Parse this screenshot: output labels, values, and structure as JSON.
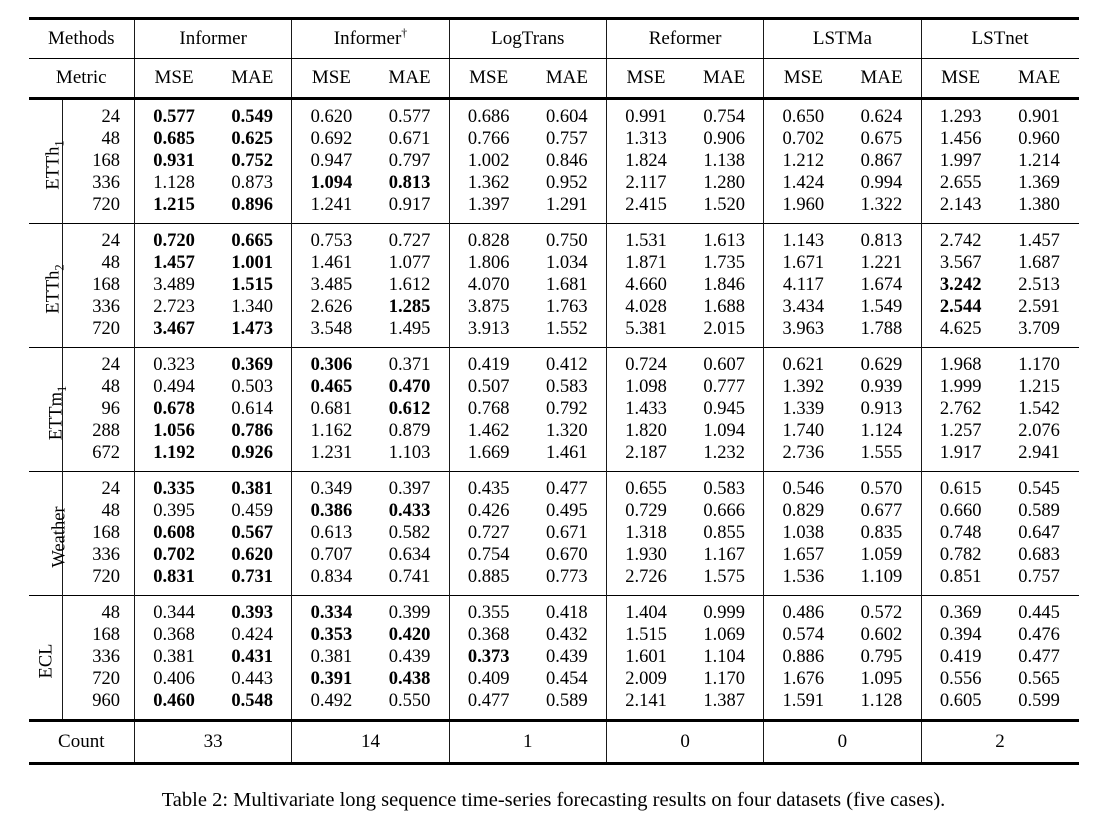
{
  "caption": "Table 2: Multivariate long sequence time-series forecasting results on four datasets (five cases).",
  "table": {
    "methods_label": "Methods",
    "metric_label": "Metric",
    "count_label": "Count",
    "metrics": [
      "MSE",
      "MAE"
    ],
    "methods": [
      {
        "name": "Informer",
        "sup": ""
      },
      {
        "name": "Informer",
        "sup": "†"
      },
      {
        "name": "LogTrans",
        "sup": ""
      },
      {
        "name": "Reformer",
        "sup": ""
      },
      {
        "name": "LSTMa",
        "sup": ""
      },
      {
        "name": "LSTnet",
        "sup": ""
      }
    ],
    "counts": [
      "33",
      "14",
      "1",
      "0",
      "0",
      "2"
    ],
    "groups": [
      {
        "base": "ETTh",
        "sub": "1",
        "rows": [
          {
            "horizon": "24",
            "values": [
              "0.577",
              "0.549",
              "0.620",
              "0.577",
              "0.686",
              "0.604",
              "0.991",
              "0.754",
              "0.650",
              "0.624",
              "1.293",
              "0.901"
            ],
            "bold": [
              0,
              1
            ]
          },
          {
            "horizon": "48",
            "values": [
              "0.685",
              "0.625",
              "0.692",
              "0.671",
              "0.766",
              "0.757",
              "1.313",
              "0.906",
              "0.702",
              "0.675",
              "1.456",
              "0.960"
            ],
            "bold": [
              0,
              1
            ]
          },
          {
            "horizon": "168",
            "values": [
              "0.931",
              "0.752",
              "0.947",
              "0.797",
              "1.002",
              "0.846",
              "1.824",
              "1.138",
              "1.212",
              "0.867",
              "1.997",
              "1.214"
            ],
            "bold": [
              0,
              1
            ]
          },
          {
            "horizon": "336",
            "values": [
              "1.128",
              "0.873",
              "1.094",
              "0.813",
              "1.362",
              "0.952",
              "2.117",
              "1.280",
              "1.424",
              "0.994",
              "2.655",
              "1.369"
            ],
            "bold": [
              2,
              3
            ]
          },
          {
            "horizon": "720",
            "values": [
              "1.215",
              "0.896",
              "1.241",
              "0.917",
              "1.397",
              "1.291",
              "2.415",
              "1.520",
              "1.960",
              "1.322",
              "2.143",
              "1.380"
            ],
            "bold": [
              0,
              1
            ]
          }
        ]
      },
      {
        "base": "ETTh",
        "sub": "2",
        "rows": [
          {
            "horizon": "24",
            "values": [
              "0.720",
              "0.665",
              "0.753",
              "0.727",
              "0.828",
              "0.750",
              "1.531",
              "1.613",
              "1.143",
              "0.813",
              "2.742",
              "1.457"
            ],
            "bold": [
              0,
              1
            ]
          },
          {
            "horizon": "48",
            "values": [
              "1.457",
              "1.001",
              "1.461",
              "1.077",
              "1.806",
              "1.034",
              "1.871",
              "1.735",
              "1.671",
              "1.221",
              "3.567",
              "1.687"
            ],
            "bold": [
              0,
              1
            ]
          },
          {
            "horizon": "168",
            "values": [
              "3.489",
              "1.515",
              "3.485",
              "1.612",
              "4.070",
              "1.681",
              "4.660",
              "1.846",
              "4.117",
              "1.674",
              "3.242",
              "2.513"
            ],
            "bold": [
              1,
              10
            ]
          },
          {
            "horizon": "336",
            "values": [
              "2.723",
              "1.340",
              "2.626",
              "1.285",
              "3.875",
              "1.763",
              "4.028",
              "1.688",
              "3.434",
              "1.549",
              "2.544",
              "2.591"
            ],
            "bold": [
              3,
              10
            ]
          },
          {
            "horizon": "720",
            "values": [
              "3.467",
              "1.473",
              "3.548",
              "1.495",
              "3.913",
              "1.552",
              "5.381",
              "2.015",
              "3.963",
              "1.788",
              "4.625",
              "3.709"
            ],
            "bold": [
              0,
              1
            ]
          }
        ]
      },
      {
        "base": "ETTm",
        "sub": "1",
        "rows": [
          {
            "horizon": "24",
            "values": [
              "0.323",
              "0.369",
              "0.306",
              "0.371",
              "0.419",
              "0.412",
              "0.724",
              "0.607",
              "0.621",
              "0.629",
              "1.968",
              "1.170"
            ],
            "bold": [
              1,
              2
            ]
          },
          {
            "horizon": "48",
            "values": [
              "0.494",
              "0.503",
              "0.465",
              "0.470",
              "0.507",
              "0.583",
              "1.098",
              "0.777",
              "1.392",
              "0.939",
              "1.999",
              "1.215"
            ],
            "bold": [
              2,
              3
            ]
          },
          {
            "horizon": "96",
            "values": [
              "0.678",
              "0.614",
              "0.681",
              "0.612",
              "0.768",
              "0.792",
              "1.433",
              "0.945",
              "1.339",
              "0.913",
              "2.762",
              "1.542"
            ],
            "bold": [
              0,
              3
            ]
          },
          {
            "horizon": "288",
            "values": [
              "1.056",
              "0.786",
              "1.162",
              "0.879",
              "1.462",
              "1.320",
              "1.820",
              "1.094",
              "1.740",
              "1.124",
              "1.257",
              "2.076"
            ],
            "bold": [
              0,
              1
            ]
          },
          {
            "horizon": "672",
            "values": [
              "1.192",
              "0.926",
              "1.231",
              "1.103",
              "1.669",
              "1.461",
              "2.187",
              "1.232",
              "2.736",
              "1.555",
              "1.917",
              "2.941"
            ],
            "bold": [
              0,
              1
            ]
          }
        ]
      },
      {
        "base": "Weather",
        "sub": "",
        "rows": [
          {
            "horizon": "24",
            "values": [
              "0.335",
              "0.381",
              "0.349",
              "0.397",
              "0.435",
              "0.477",
              "0.655",
              "0.583",
              "0.546",
              "0.570",
              "0.615",
              "0.545"
            ],
            "bold": [
              0,
              1
            ]
          },
          {
            "horizon": "48",
            "values": [
              "0.395",
              "0.459",
              "0.386",
              "0.433",
              "0.426",
              "0.495",
              "0.729",
              "0.666",
              "0.829",
              "0.677",
              "0.660",
              "0.589"
            ],
            "bold": [
              2,
              3
            ]
          },
          {
            "horizon": "168",
            "values": [
              "0.608",
              "0.567",
              "0.613",
              "0.582",
              "0.727",
              "0.671",
              "1.318",
              "0.855",
              "1.038",
              "0.835",
              "0.748",
              "0.647"
            ],
            "bold": [
              0,
              1
            ]
          },
          {
            "horizon": "336",
            "values": [
              "0.702",
              "0.620",
              "0.707",
              "0.634",
              "0.754",
              "0.670",
              "1.930",
              "1.167",
              "1.657",
              "1.059",
              "0.782",
              "0.683"
            ],
            "bold": [
              0,
              1
            ]
          },
          {
            "horizon": "720",
            "values": [
              "0.831",
              "0.731",
              "0.834",
              "0.741",
              "0.885",
              "0.773",
              "2.726",
              "1.575",
              "1.536",
              "1.109",
              "0.851",
              "0.757"
            ],
            "bold": [
              0,
              1
            ]
          }
        ]
      },
      {
        "base": "ECL",
        "sub": "",
        "rows": [
          {
            "horizon": "48",
            "values": [
              "0.344",
              "0.393",
              "0.334",
              "0.399",
              "0.355",
              "0.418",
              "1.404",
              "0.999",
              "0.486",
              "0.572",
              "0.369",
              "0.445"
            ],
            "bold": [
              1,
              2
            ]
          },
          {
            "horizon": "168",
            "values": [
              "0.368",
              "0.424",
              "0.353",
              "0.420",
              "0.368",
              "0.432",
              "1.515",
              "1.069",
              "0.574",
              "0.602",
              "0.394",
              "0.476"
            ],
            "bold": [
              2,
              3
            ]
          },
          {
            "horizon": "336",
            "values": [
              "0.381",
              "0.431",
              "0.381",
              "0.439",
              "0.373",
              "0.439",
              "1.601",
              "1.104",
              "0.886",
              "0.795",
              "0.419",
              "0.477"
            ],
            "bold": [
              1,
              4
            ]
          },
          {
            "horizon": "720",
            "values": [
              "0.406",
              "0.443",
              "0.391",
              "0.438",
              "0.409",
              "0.454",
              "2.009",
              "1.170",
              "1.676",
              "1.095",
              "0.556",
              "0.565"
            ],
            "bold": [
              2,
              3
            ]
          },
          {
            "horizon": "960",
            "values": [
              "0.460",
              "0.548",
              "0.492",
              "0.550",
              "0.477",
              "0.589",
              "2.141",
              "1.387",
              "1.591",
              "1.128",
              "0.605",
              "0.599"
            ],
            "bold": [
              0,
              1
            ]
          }
        ]
      }
    ]
  }
}
